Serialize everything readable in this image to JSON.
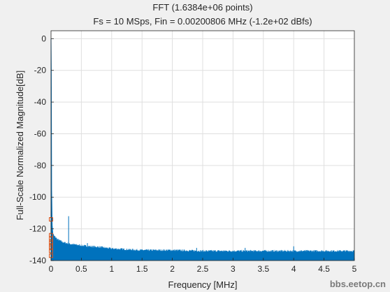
{
  "watermark": "bbs.eetop.cn",
  "chart_data": {
    "type": "line",
    "title": [
      "FFT (1.6384e+06 points)",
      "Fs = 10 MSps, Fin = 0.00200806 MHz (-1.2e+02 dBfs)"
    ],
    "xlabel": "Frequency [MHz]",
    "ylabel": "Full-Scale Normalized Magnitude[dB]",
    "xlim": [
      0,
      5
    ],
    "ylim": [
      -140,
      5
    ],
    "xticks": [
      0,
      0.5,
      1,
      1.5,
      2,
      2.5,
      3,
      3.5,
      4,
      4.5,
      5
    ],
    "xtick_labels": [
      "0",
      "0.5",
      "1",
      "1.5",
      "2",
      "2.5",
      "3",
      "3.5",
      "4",
      "4.5",
      "5"
    ],
    "yticks": [
      0,
      -20,
      -40,
      -60,
      -80,
      -100,
      -120,
      -140
    ],
    "ytick_labels": [
      "0",
      "-20",
      "-40",
      "-60",
      "-80",
      "-100",
      "-120",
      "-140"
    ],
    "grid": true,
    "line_color": "#0072bd",
    "marker_color": "#d95319",
    "series": [
      {
        "style": "line",
        "x": [
          0,
          0.005,
          0.01,
          0.02,
          0.03,
          0.05,
          0.08,
          0.1,
          0.15,
          0.2,
          0.25,
          0.3,
          0.4,
          0.5,
          0.6,
          0.8,
          1.0,
          1.25,
          1.5,
          2.0,
          2.5,
          3.0,
          3.5,
          4.0,
          4.5,
          5.0
        ],
        "y_top": [
          0,
          -20,
          -95,
          -118,
          -123,
          -125,
          -126,
          -127,
          -128,
          -129,
          -129.5,
          -130,
          -130.5,
          -131,
          -131.5,
          -132,
          -133,
          -133.5,
          -134,
          -134,
          -134.5,
          -134.5,
          -134.5,
          -134.5,
          -134.5,
          -134.5
        ],
        "y_floor": -140,
        "spurs": [
          {
            "x": 0.29,
            "y": -112
          },
          {
            "x": 0.6,
            "y": -129
          },
          {
            "x": 2.4,
            "y": -132
          },
          {
            "x": 3.2,
            "y": -132
          },
          {
            "x": 4.0,
            "y": -131
          }
        ]
      },
      {
        "style": "markers",
        "x": [
          0,
          0,
          0,
          0,
          0,
          0,
          0,
          0,
          0
        ],
        "y": [
          -114,
          -124,
          -126,
          -128,
          -129,
          -131,
          -132,
          -134,
          -137
        ]
      }
    ]
  }
}
